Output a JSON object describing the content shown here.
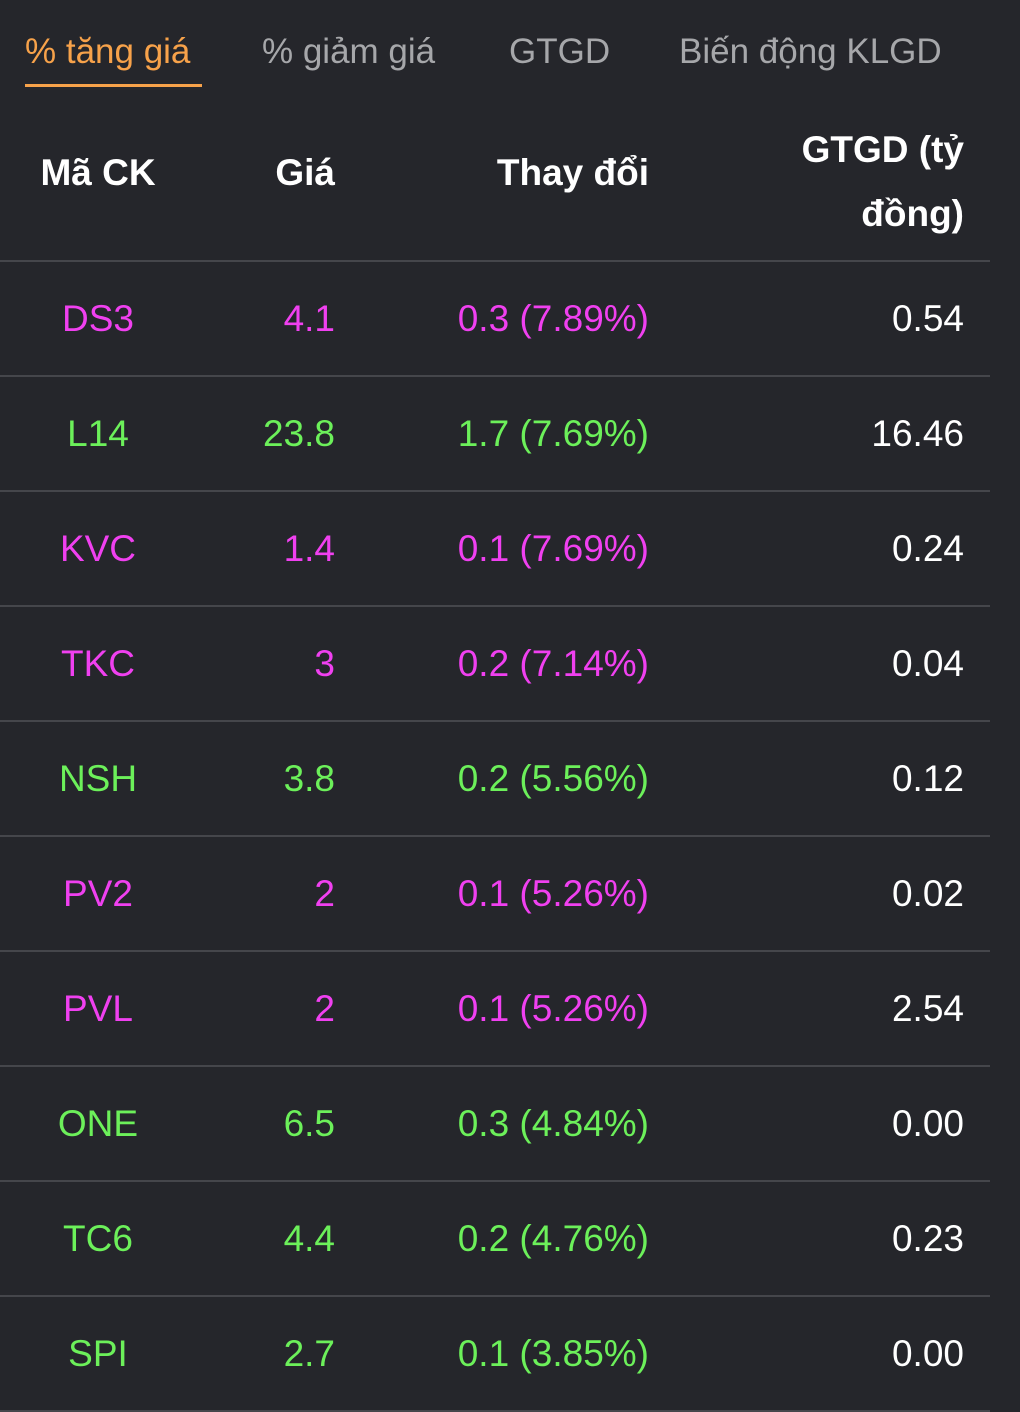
{
  "tabs": [
    {
      "label": "% tăng giá",
      "active": true
    },
    {
      "label": "% giảm giá",
      "active": false
    },
    {
      "label": "GTGD",
      "active": false
    },
    {
      "label": "Biến động KLGD",
      "active": false
    }
  ],
  "table": {
    "headers": {
      "code": "Mã CK",
      "price": "Giá",
      "change": "Thay đổi",
      "value": "GTGD (tỷ đồng)"
    },
    "rows": [
      {
        "code": "DS3",
        "price": "4.1",
        "change": "0.3 (7.89%)",
        "value": "0.54",
        "status": "ceiling"
      },
      {
        "code": "L14",
        "price": "23.8",
        "change": "1.7 (7.69%)",
        "value": "16.46",
        "status": "up"
      },
      {
        "code": "KVC",
        "price": "1.4",
        "change": "0.1 (7.69%)",
        "value": "0.24",
        "status": "ceiling"
      },
      {
        "code": "TKC",
        "price": "3",
        "change": "0.2 (7.14%)",
        "value": "0.04",
        "status": "ceiling"
      },
      {
        "code": "NSH",
        "price": "3.8",
        "change": "0.2 (5.56%)",
        "value": "0.12",
        "status": "up"
      },
      {
        "code": "PV2",
        "price": "2",
        "change": "0.1 (5.26%)",
        "value": "0.02",
        "status": "ceiling"
      },
      {
        "code": "PVL",
        "price": "2",
        "change": "0.1 (5.26%)",
        "value": "2.54",
        "status": "ceiling"
      },
      {
        "code": "ONE",
        "price": "6.5",
        "change": "0.3 (4.84%)",
        "value": "0.00",
        "status": "up"
      },
      {
        "code": "TC6",
        "price": "4.4",
        "change": "0.2 (4.76%)",
        "value": "0.23",
        "status": "up"
      },
      {
        "code": "SPI",
        "price": "2.7",
        "change": "0.1 (3.85%)",
        "value": "0.00",
        "status": "up"
      }
    ]
  },
  "colors": {
    "background": "#25262b",
    "active_tab": "#f7a24a",
    "inactive_tab": "#a6a7aa",
    "up": "#6cf05a",
    "ceiling": "#f040f0",
    "divider": "#45464b"
  }
}
